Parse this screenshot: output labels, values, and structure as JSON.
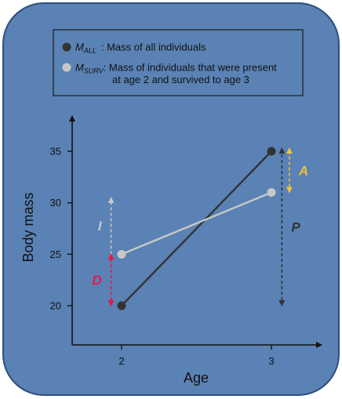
{
  "legend": {
    "items": [
      {
        "symbol": "M",
        "subscript": "ALL",
        "text": ": Mass of all individuals",
        "color": "#333333"
      },
      {
        "symbol": "M",
        "subscript": "SURV",
        "text_lines": [
          ": Mass of individuals that were present",
          "at age 2 and survived to age 3"
        ],
        "color": "#c8c8c8"
      }
    ]
  },
  "chart_data": {
    "type": "line",
    "xlabel": "Age",
    "ylabel": "Body mass",
    "x_ticks": [
      "2",
      "3"
    ],
    "y_ticks": [
      "20",
      "25",
      "30",
      "35"
    ],
    "ylim": [
      16,
      37
    ],
    "grid": false,
    "series": [
      {
        "key": "all",
        "x": [
          2,
          3
        ],
        "values": [
          20,
          35
        ],
        "color": "#333333"
      },
      {
        "key": "surv",
        "x": [
          2,
          3
        ],
        "values": [
          25,
          31
        ],
        "color": "#c8c8c8"
      }
    ],
    "annotations": [
      {
        "label": "I",
        "x": 1.93,
        "from": 25,
        "to": 30.5,
        "color": "#c8c8c8",
        "direction": "up",
        "style": "dashed"
      },
      {
        "label": "D",
        "x": 1.93,
        "from": 20,
        "to": 25,
        "color": "#e8174a",
        "direction": "both",
        "style": "dashed"
      },
      {
        "label": "A",
        "x": 3.12,
        "from": 31,
        "to": 35.3,
        "color": "#f0c040",
        "direction": "both",
        "style": "dashed"
      },
      {
        "label": "P",
        "x": 3.07,
        "from": 20,
        "to": 35.3,
        "color": "#333333",
        "direction": "both",
        "style": "dashed"
      }
    ]
  },
  "colors": {
    "panel_bg": "#5a82b4",
    "panel_border": "#2e4f7c",
    "axis": "#111111"
  }
}
